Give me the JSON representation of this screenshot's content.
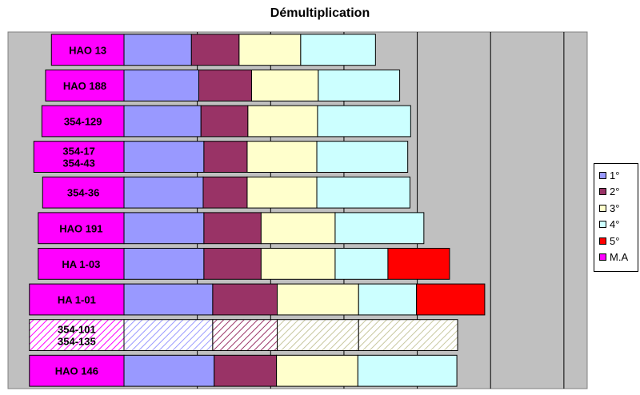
{
  "chart_data": {
    "type": "bar",
    "orientation": "horizontal",
    "stacked": true,
    "title": "Démultiplication",
    "categories": [
      "HAO 13",
      "HAO 188",
      "354-129",
      "354-17\n354-43",
      "354-36",
      "HAO 191",
      "HA 1-03",
      "HA 1-01",
      "354-101\n354-135",
      "HAO 146"
    ],
    "series": [
      {
        "name": "M.A",
        "color": "#FF00FF",
        "values": [
          0.99,
          1.07,
          1.12,
          1.23,
          1.11,
          1.17,
          1.17,
          1.29,
          1.29,
          1.29
        ]
      },
      {
        "name": "1°",
        "color": "#9999FF",
        "values": [
          0.92,
          1.02,
          1.05,
          1.09,
          1.08,
          1.09,
          1.09,
          1.21,
          1.21,
          1.23
        ]
      },
      {
        "name": "2°",
        "color": "#993366",
        "values": [
          0.65,
          0.72,
          0.64,
          0.59,
          0.6,
          0.78,
          0.78,
          0.88,
          0.88,
          0.85
        ]
      },
      {
        "name": "3°",
        "color": "#FFFFCC",
        "values": [
          0.84,
          0.91,
          0.95,
          0.95,
          0.95,
          1.01,
          1.01,
          1.11,
          1.11,
          1.11
        ]
      },
      {
        "name": "4°",
        "color": "#CCFFFF",
        "values": [
          1.02,
          1.11,
          1.27,
          1.24,
          1.27,
          1.21,
          0.72,
          0.79,
          1.35,
          1.35
        ]
      },
      {
        "name": "5°",
        "color": "#FF0000",
        "values": [
          0,
          0,
          0,
          0,
          0,
          0,
          0.84,
          0.93,
          0,
          0
        ]
      }
    ],
    "hatched_category": "354-101\n354-135",
    "xlim": [
      0,
      7.9
    ],
    "grid": true,
    "legend_position": "right"
  }
}
